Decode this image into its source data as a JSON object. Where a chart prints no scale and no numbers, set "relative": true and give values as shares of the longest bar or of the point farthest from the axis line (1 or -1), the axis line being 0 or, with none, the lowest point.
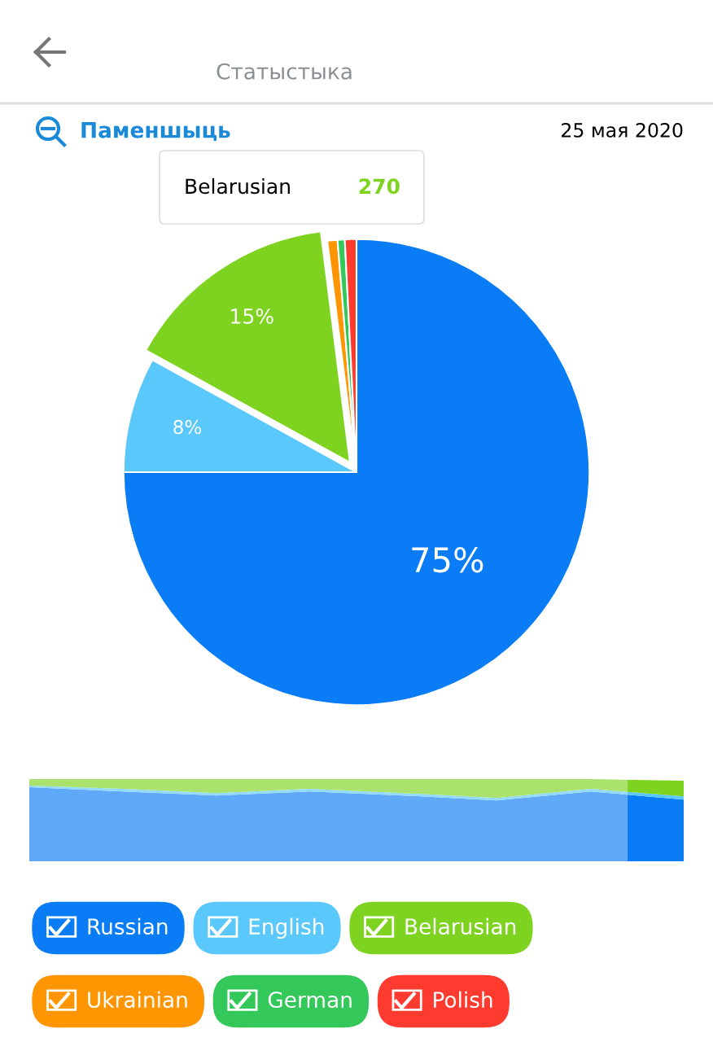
{
  "chart_data": [
    {
      "type": "pie",
      "subtitle": "Статыстыка",
      "annotations": [
        "Паменшыць",
        "25 мая 2020",
        {
          "text": "Belarusian",
          "x": "Belarusian"
        },
        {
          "text": "270",
          "x": "Belarusian"
        }
      ],
      "categories": [
        "Russian",
        "English",
        "Belarusian",
        "Ukrainian",
        "German",
        "Polish"
      ],
      "values": [
        75,
        8,
        15,
        0.7,
        0.5,
        0.8
      ],
      "colors": [
        "#0a7cf5",
        "#5ac8fa",
        "#7ed321",
        "#ff9500",
        "#34c759",
        "#ff3b30"
      ],
      "value_labels": [
        "75%",
        "8%",
        "15%",
        null,
        null,
        null
      ],
      "legend": "bottom"
    },
    {
      "type": "area",
      "stacked": true,
      "relative": true,
      "categories": [
        null,
        null,
        null,
        null,
        null,
        null,
        null,
        null
      ],
      "series": [
        {
          "color": "#0a7cf5",
          "values": [
            0.9,
            0.85,
            0.8,
            0.85,
            0.8,
            0.74,
            0.85,
            0.75
          ]
        },
        {
          "color": "#5ac8fa",
          "values": [
            0.02,
            0.03,
            0.03,
            0.03,
            0.03,
            0.03,
            0.03,
            0.04
          ]
        },
        {
          "color": "#7ed321",
          "values": [
            0.08,
            0.12,
            0.17,
            0.12,
            0.17,
            0.23,
            0.12,
            0.19
          ]
        }
      ]
    }
  ]
}
